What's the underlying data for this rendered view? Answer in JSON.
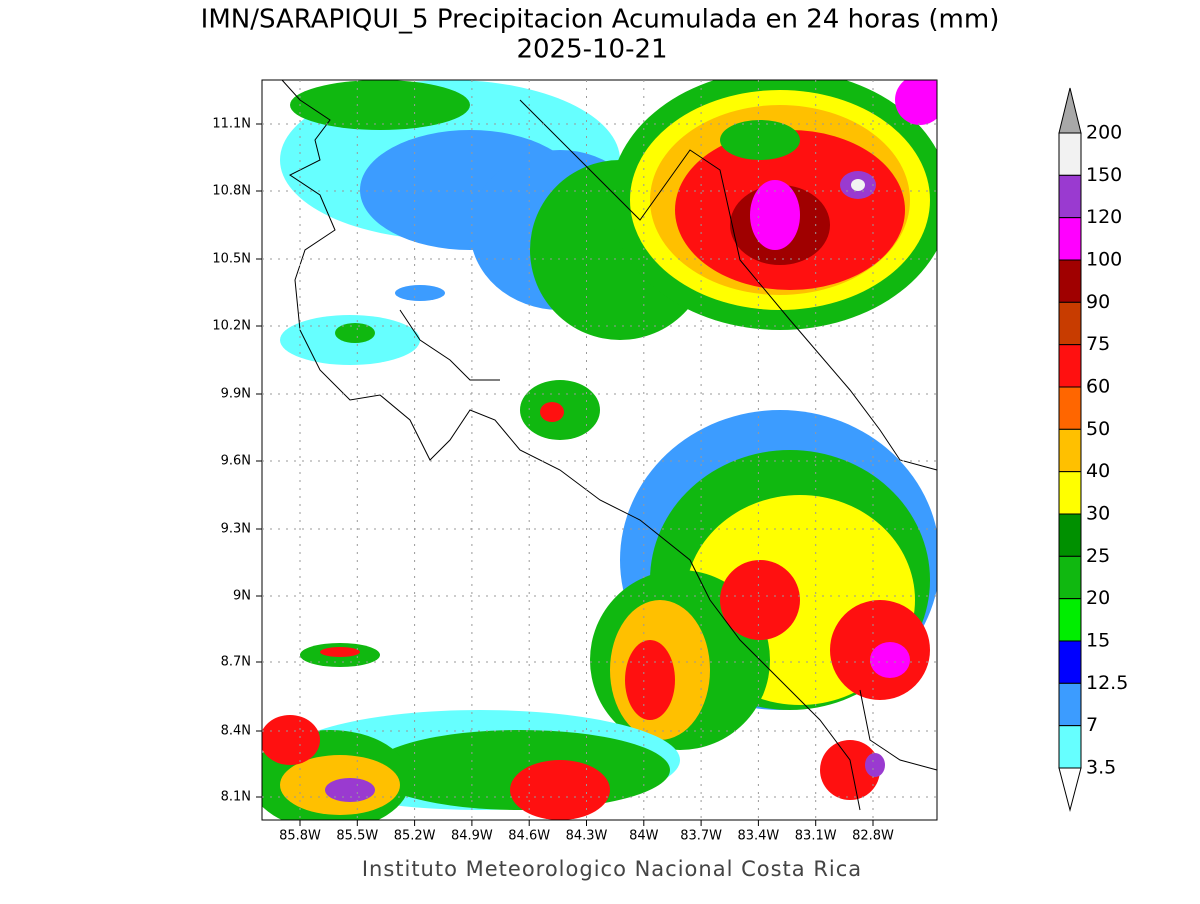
{
  "title": "IMN/SARAPIQUI_5 Precipitacion Acumulada en 24 horas (mm)",
  "subtitle": "2025-10-21",
  "lat_labels": [
    "11.1N",
    "10.8N",
    "10.5N",
    "10.2N",
    "9.9N",
    "9.6N",
    "9.3N",
    "9N",
    "8.7N",
    "8.4N",
    "8.1N"
  ],
  "lon_labels": [
    "85.8W",
    "85.5W",
    "85.2W",
    "84.9W",
    "84.6W",
    "84.3W",
    "84W",
    "83.7W",
    "83.4W",
    "83.1W",
    "82.8W"
  ],
  "colorbar": {
    "labels": [
      "200",
      "150",
      "120",
      "100",
      "90",
      "75",
      "60",
      "50",
      "40",
      "30",
      "25",
      "20",
      "15",
      "12.5",
      "7",
      "3.5"
    ],
    "colors": [
      "#f2f2f2",
      "#9a3ad0",
      "#ff00ff",
      "#a00000",
      "#c83c00",
      "#ff1010",
      "#ff6600",
      "#ffc000",
      "#ffff00",
      "#009000",
      "#10b810",
      "#00ee00",
      "#0000ff",
      "#3c9cff",
      "#66ffff"
    ],
    "over_color": "#a8a8a8",
    "under_color": "#ffffff"
  },
  "footer": "Instituto Meteorologico Nacional Costa Rica"
}
